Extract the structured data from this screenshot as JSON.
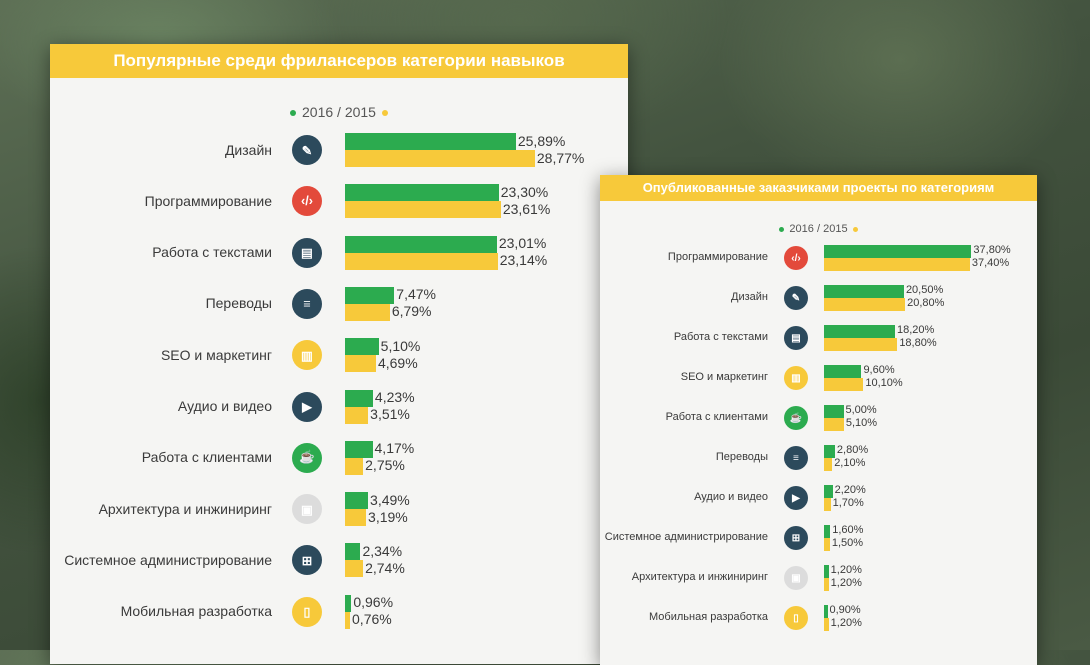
{
  "chart_data": [
    {
      "type": "bar",
      "title": "Популярные среди фрилансеров категории навыков",
      "legend": {
        "left": "2016",
        "separator": "/",
        "right": "2015"
      },
      "categories": [
        "Дизайн",
        "Программирование",
        "Работа с текстами",
        "Переводы",
        "SEO и маркетинг",
        "Аудио и видео",
        "Работа с клиентами",
        "Архитектура и инжиниринг",
        "Системное администрирование",
        "Мобильная разработка"
      ],
      "icons": [
        "design-icon",
        "code-icon",
        "text-icon",
        "translation-icon",
        "seo-icon",
        "video-icon",
        "client-icon",
        "architecture-icon",
        "sysadmin-icon",
        "mobile-icon"
      ],
      "series": [
        {
          "name": "2016",
          "color": "#2cab4f",
          "values": [
            25.89,
            23.3,
            23.01,
            7.47,
            5.1,
            4.23,
            4.17,
            3.49,
            2.34,
            0.96
          ],
          "labels": [
            "25,89%",
            "23,30%",
            "23,01%",
            "7,47%",
            "5,10%",
            "4,23%",
            "4,17%",
            "3,49%",
            "2,34%",
            "0,96%"
          ]
        },
        {
          "name": "2015",
          "color": "#f7c93a",
          "values": [
            28.77,
            23.61,
            23.14,
            6.79,
            4.69,
            3.51,
            2.75,
            3.19,
            2.74,
            0.76
          ],
          "labels": [
            "28,77%",
            "23,61%",
            "23,14%",
            "6,79%",
            "4,69%",
            "3,51%",
            "2,75%",
            "3,19%",
            "2,74%",
            "0,76%"
          ]
        }
      ]
    },
    {
      "type": "bar",
      "title": "Опубликованные заказчиками проекты по категориям",
      "legend": {
        "left": "2016",
        "separator": "/",
        "right": "2015"
      },
      "categories": [
        "Программирование",
        "Дизайн",
        "Работа с текстами",
        "SEO и маркетинг",
        "Работа с клиентами",
        "Переводы",
        "Аудио и видео",
        "Системное администрирование",
        "Архитектура и инжиниринг",
        "Мобильная разработка"
      ],
      "icons": [
        "code-icon",
        "design-icon",
        "text-icon",
        "seo-icon",
        "client-icon",
        "translation-icon",
        "video-icon",
        "sysadmin-icon",
        "architecture-icon",
        "mobile-icon"
      ],
      "series": [
        {
          "name": "2016",
          "color": "#2cab4f",
          "values": [
            37.8,
            20.5,
            18.2,
            9.6,
            5.0,
            2.8,
            2.2,
            1.6,
            1.2,
            0.9
          ],
          "labels": [
            "37,80%",
            "20,50%",
            "18,20%",
            "9,60%",
            "5,00%",
            "2,80%",
            "2,20%",
            "1,60%",
            "1,20%",
            "0,90%"
          ]
        },
        {
          "name": "2015",
          "color": "#f7c93a",
          "values": [
            37.4,
            20.8,
            18.8,
            10.1,
            5.1,
            2.1,
            1.7,
            1.5,
            1.2,
            1.2
          ],
          "labels": [
            "37,40%",
            "20,80%",
            "18,80%",
            "10,10%",
            "5,10%",
            "2,10%",
            "1,70%",
            "1,50%",
            "1,20%",
            "1,20%"
          ]
        }
      ]
    }
  ]
}
